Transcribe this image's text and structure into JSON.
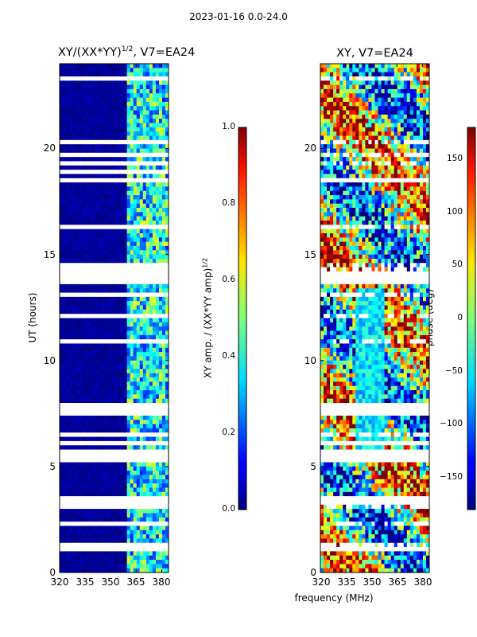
{
  "suptitle": "2023-01-16 0.0-24.0",
  "left_panel": {
    "title_main": "XY/(XX*YY)",
    "title_exp": "1/2",
    "title_suffix": ", V7=EA24",
    "ylabel": "UT (hours)",
    "xticks": [
      "320",
      "335",
      "350",
      "365",
      "380"
    ],
    "yticks": [
      "0",
      "5",
      "10",
      "15",
      "20"
    ]
  },
  "left_colorbar": {
    "label_main": "XY amp. / (XX*YY amp)",
    "label_exp": "1/2",
    "ticks": [
      "0.0",
      "0.2",
      "0.4",
      "0.6",
      "0.8",
      "1.0"
    ]
  },
  "right_panel": {
    "title": "XY, V7=EA24",
    "xticks": [
      "320",
      "335",
      "350",
      "365",
      "380"
    ],
    "yticks": [
      "0",
      "5",
      "10",
      "15",
      "20"
    ]
  },
  "right_colorbar": {
    "label": "phase (deg)",
    "ticks": [
      "−150",
      "−100",
      "−50",
      "0",
      "50",
      "100",
      "150"
    ]
  },
  "xlabel": "frequency (MHz)",
  "chart_data": [
    {
      "type": "heatmap",
      "title": "XY/(XX*YY)^1/2, V7=EA24",
      "xlabel": "frequency (MHz)",
      "ylabel": "UT (hours)",
      "xlim": [
        320,
        384
      ],
      "ylim": [
        0,
        24
      ],
      "colormap": "jet",
      "clim": [
        0.0,
        1.0
      ],
      "colorbar_label": "XY amp. / (XX*YY amp)^1/2",
      "description_bands": [
        {
          "x_range": [
            320,
            360
          ],
          "typical_value": 0.02
        },
        {
          "x_range": [
            360,
            384
          ],
          "typical_value": 0.35
        }
      ],
      "gap_hours": [
        [
          0.9,
          1.15
        ],
        [
          1.9,
          2.0
        ],
        [
          3.3,
          3.55
        ],
        [
          5.25,
          5.75
        ],
        [
          6.1,
          6.2
        ],
        [
          7.5,
          8.0
        ],
        [
          13.6,
          14.2
        ],
        [
          18.4,
          18.6
        ],
        [
          18.8,
          19.0
        ]
      ]
    },
    {
      "type": "heatmap",
      "title": "XY, V7=EA24",
      "xlabel": "frequency (MHz)",
      "xlim": [
        320,
        384
      ],
      "ylim": [
        0,
        24
      ],
      "colormap": "jet",
      "clim": [
        -180,
        180
      ],
      "colorbar_label": "phase (deg)",
      "colorbar_ticks": [
        -150,
        -100,
        -50,
        0,
        50,
        100,
        150
      ],
      "gap_hours": [
        [
          0.9,
          1.15
        ],
        [
          3.3,
          3.55
        ],
        [
          5.25,
          5.75
        ],
        [
          6.1,
          6.2
        ],
        [
          7.5,
          8.0
        ],
        [
          13.6,
          14.2
        ],
        [
          18.4,
          18.6
        ]
      ]
    }
  ]
}
